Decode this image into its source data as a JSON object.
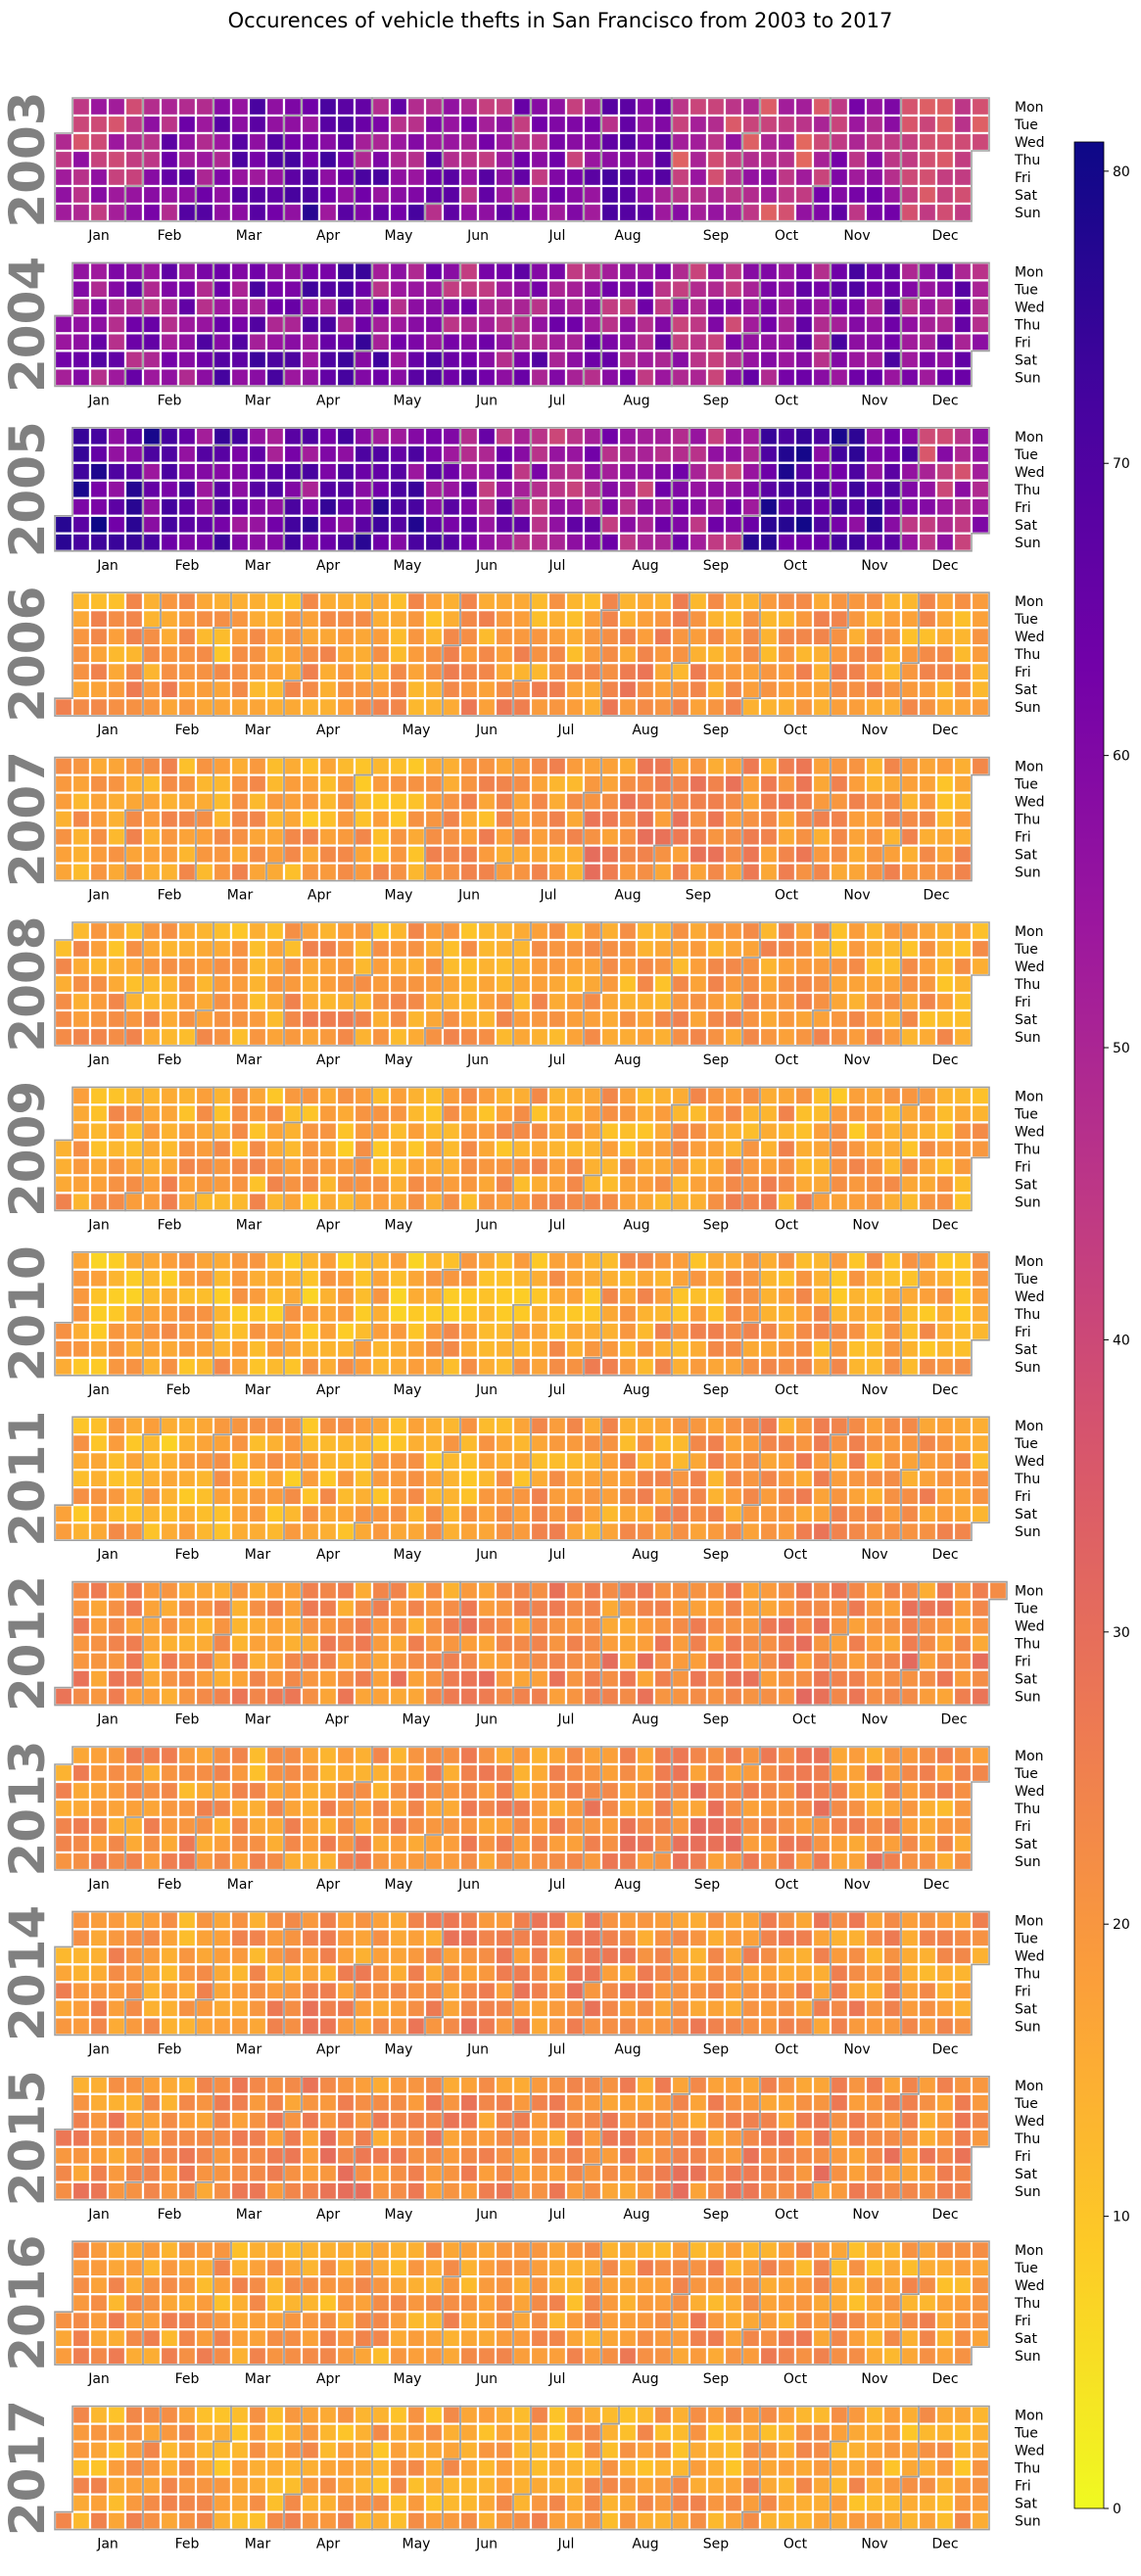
{
  "chart_data": {
    "type": "heatmap",
    "title": "Occurences of vehicle thefts in San Francisco from 2003 to 2017",
    "years": [
      {
        "year": "2003",
        "level_by_month": [
          48,
          57,
          60,
          62,
          58,
          54,
          52,
          58,
          45,
          42,
          52,
          40
        ]
      },
      {
        "year": "2004",
        "level_by_month": [
          55,
          56,
          60,
          62,
          58,
          55,
          55,
          52,
          50,
          55,
          60,
          58
        ]
      },
      {
        "year": "2005",
        "level_by_month": [
          68,
          64,
          62,
          62,
          63,
          55,
          52,
          52,
          50,
          68,
          65,
          48
        ]
      },
      {
        "year": "2006",
        "level_by_month": [
          18,
          18,
          17,
          18,
          17,
          19,
          18,
          20,
          18,
          19,
          18,
          17
        ]
      },
      {
        "year": "2007",
        "level_by_month": [
          17,
          18,
          17,
          16,
          16,
          18,
          19,
          22,
          22,
          21,
          19,
          17
        ]
      },
      {
        "year": "2008",
        "level_by_month": [
          17,
          16,
          16,
          18,
          17,
          17,
          16,
          17,
          18,
          18,
          17,
          16
        ]
      },
      {
        "year": "2009",
        "level_by_month": [
          17,
          17,
          16,
          15,
          16,
          17,
          17,
          17,
          18,
          18,
          16,
          16
        ]
      },
      {
        "year": "2010",
        "level_by_month": [
          14,
          15,
          15,
          14,
          14,
          15,
          16,
          18,
          17,
          17,
          16,
          15
        ]
      },
      {
        "year": "2011",
        "level_by_month": [
          15,
          14,
          15,
          15,
          15,
          16,
          17,
          18,
          19,
          20,
          19,
          18
        ]
      },
      {
        "year": "2012",
        "level_by_month": [
          21,
          20,
          20,
          20,
          21,
          22,
          22,
          22,
          22,
          23,
          23,
          22
        ]
      },
      {
        "year": "2013",
        "level_by_month": [
          20,
          19,
          18,
          19,
          20,
          21,
          20,
          22,
          23,
          23,
          21,
          19
        ]
      },
      {
        "year": "2014",
        "level_by_month": [
          19,
          18,
          19,
          21,
          20,
          22,
          21,
          21,
          20,
          21,
          20,
          19
        ]
      },
      {
        "year": "2015",
        "level_by_month": [
          21,
          20,
          21,
          23,
          22,
          22,
          21,
          21,
          22,
          22,
          22,
          21
        ]
      },
      {
        "year": "2016",
        "level_by_month": [
          19,
          18,
          18,
          17,
          17,
          18,
          18,
          19,
          19,
          19,
          18,
          18
        ]
      },
      {
        "year": "2017",
        "level_by_month": [
          17,
          17,
          16,
          17,
          16,
          17,
          17,
          17,
          17,
          17,
          16,
          16
        ]
      }
    ],
    "month_labels": [
      "Jan",
      "Feb",
      "Mar",
      "Apr",
      "May",
      "Jun",
      "Jul",
      "Aug",
      "Sep",
      "Oct",
      "Nov",
      "Dec"
    ],
    "weekday_labels": [
      "Mon",
      "Tue",
      "Wed",
      "Thu",
      "Fri",
      "Sat",
      "Sun"
    ],
    "colorbar": {
      "min": 0,
      "max": 81,
      "ticks": [
        0,
        10,
        20,
        30,
        40,
        50,
        60,
        70,
        80
      ],
      "colormap": "plasma_r",
      "stops": [
        "#f0f921",
        "#fdca26",
        "#fb9f3a",
        "#ed7953",
        "#d8576b",
        "#bd3786",
        "#9c179e",
        "#7201a8",
        "#46039f",
        "#0d0887"
      ]
    },
    "colors": {
      "cell_border": "#ffffff",
      "month_outline": "#a0a0a0",
      "year_label": "#808080"
    }
  }
}
